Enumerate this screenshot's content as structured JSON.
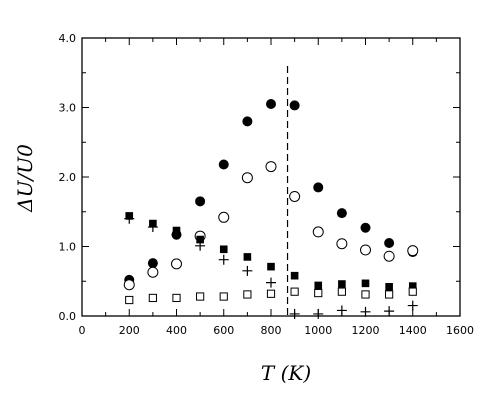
{
  "chart_data": {
    "type": "scatter",
    "title": "",
    "xlabel": "T (K)",
    "ylabel": "ΔU/U0",
    "xlim": [
      0,
      1600
    ],
    "ylim": [
      0,
      4.0
    ],
    "x_ticks": [
      "0",
      "200",
      "400",
      "600",
      "800",
      "1000",
      "1200",
      "1400",
      "1600"
    ],
    "y_ticks": [
      "0.0",
      "1.0",
      "2.0",
      "3.0",
      "4.0"
    ],
    "grid": false,
    "legend": "none",
    "reference_line": {
      "x": 870,
      "style": "dashed"
    },
    "series": [
      {
        "marker": "filled-circle",
        "points": [
          [
            200,
            0.52
          ],
          [
            300,
            0.76
          ],
          [
            400,
            1.17
          ],
          [
            500,
            1.65
          ],
          [
            600,
            2.18
          ],
          [
            700,
            2.8
          ],
          [
            800,
            3.05
          ],
          [
            900,
            3.03
          ],
          [
            1000,
            1.85
          ],
          [
            1100,
            1.48
          ],
          [
            1200,
            1.27
          ],
          [
            1300,
            1.05
          ],
          [
            1400,
            0.92
          ]
        ]
      },
      {
        "marker": "open-circle",
        "points": [
          [
            200,
            0.45
          ],
          [
            300,
            0.63
          ],
          [
            400,
            0.75
          ],
          [
            500,
            1.15
          ],
          [
            600,
            1.42
          ],
          [
            700,
            1.99
          ],
          [
            800,
            2.15
          ],
          [
            900,
            1.72
          ],
          [
            1000,
            1.21
          ],
          [
            1100,
            1.04
          ],
          [
            1200,
            0.95
          ],
          [
            1300,
            0.86
          ],
          [
            1400,
            0.94
          ]
        ]
      },
      {
        "marker": "filled-square",
        "points": [
          [
            200,
            1.44
          ],
          [
            300,
            1.33
          ],
          [
            400,
            1.23
          ],
          [
            500,
            1.1
          ],
          [
            600,
            0.96
          ],
          [
            700,
            0.85
          ],
          [
            800,
            0.71
          ],
          [
            900,
            0.58
          ],
          [
            1000,
            0.44
          ],
          [
            1100,
            0.46
          ],
          [
            1200,
            0.47
          ],
          [
            1300,
            0.42
          ],
          [
            1400,
            0.43
          ]
        ]
      },
      {
        "marker": "open-square",
        "points": [
          [
            200,
            0.23
          ],
          [
            300,
            0.26
          ],
          [
            400,
            0.26
          ],
          [
            500,
            0.28
          ],
          [
            600,
            0.28
          ],
          [
            700,
            0.31
          ],
          [
            800,
            0.32
          ],
          [
            900,
            0.35
          ],
          [
            1000,
            0.33
          ],
          [
            1100,
            0.35
          ],
          [
            1200,
            0.31
          ],
          [
            1300,
            0.31
          ],
          [
            1400,
            0.35
          ]
        ]
      },
      {
        "marker": "plus",
        "points": [
          [
            200,
            1.4
          ],
          [
            300,
            1.28
          ],
          [
            400,
            1.17
          ],
          [
            500,
            1.01
          ],
          [
            600,
            0.81
          ],
          [
            700,
            0.65
          ],
          [
            800,
            0.48
          ],
          [
            900,
            0.03
          ],
          [
            1000,
            0.03
          ],
          [
            1100,
            0.08
          ],
          [
            1200,
            0.06
          ],
          [
            1300,
            0.07
          ],
          [
            1400,
            0.15
          ]
        ]
      }
    ]
  }
}
